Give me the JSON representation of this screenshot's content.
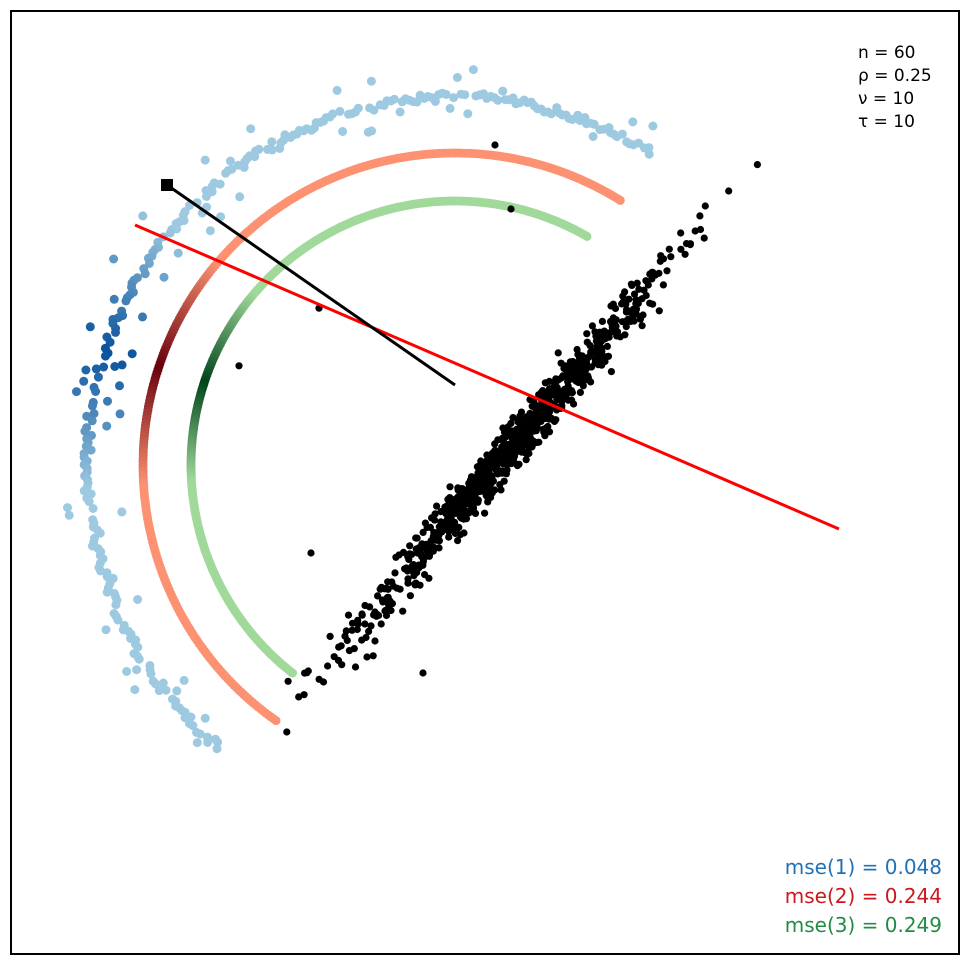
{
  "params": [
    "n = 60",
    "ρ = 0.25",
    "ν = 10",
    "τ = 10"
  ],
  "mse": [
    {
      "label": "mse(1) = 0.048",
      "color": "#2171b5"
    },
    {
      "label": "mse(2) = 0.244",
      "color": "#cb181d"
    },
    {
      "label": "mse(3) = 0.249",
      "color": "#238b45"
    }
  ],
  "chart_data": {
    "type": "scatter",
    "title": "",
    "xlabel": "",
    "ylabel": "",
    "grid": false,
    "legend_position": "none",
    "point_cloud": {
      "color": "#000000",
      "count": 900,
      "outliers": [
        [
          -1.35,
          0.62
        ],
        [
          -0.85,
          0.98
        ],
        [
          -0.55,
          -1.2
        ],
        [
          -0.9,
          -0.55
        ],
        [
          0.25,
          2.0
        ],
        [
          0.35,
          1.6
        ],
        [
          -0.2,
          -1.3
        ],
        [
          -0.5,
          -1.1
        ]
      ]
    },
    "reference_point": {
      "x": -1.8,
      "y": 1.75,
      "marker": "square",
      "color": "#000000"
    },
    "projection_segment": {
      "from": [
        -1.8,
        1.75
      ],
      "to": [
        0.0,
        0.5
      ],
      "color": "#000000"
    },
    "principal_line": {
      "from": [
        -2.0,
        1.5
      ],
      "to": [
        2.4,
        -0.4
      ],
      "color": "#ff0000"
    },
    "series": [
      {
        "name": "mse(1)",
        "light_color": "#9ecae1",
        "dark_color": "#08519c",
        "radius": 2.3,
        "start_deg": 58,
        "end_deg": 230,
        "highlight_deg": 162
      },
      {
        "name": "mse(2)",
        "light_color": "#fc9272",
        "dark_color": "#67000d",
        "radius": 1.95,
        "start_deg": 58,
        "end_deg": 235,
        "highlight_deg": 162
      },
      {
        "name": "mse(3)",
        "light_color": "#a1d99b",
        "dark_color": "#00441b",
        "radius": 1.65,
        "start_deg": 60,
        "end_deg": 232,
        "highlight_deg": 162
      }
    ]
  }
}
